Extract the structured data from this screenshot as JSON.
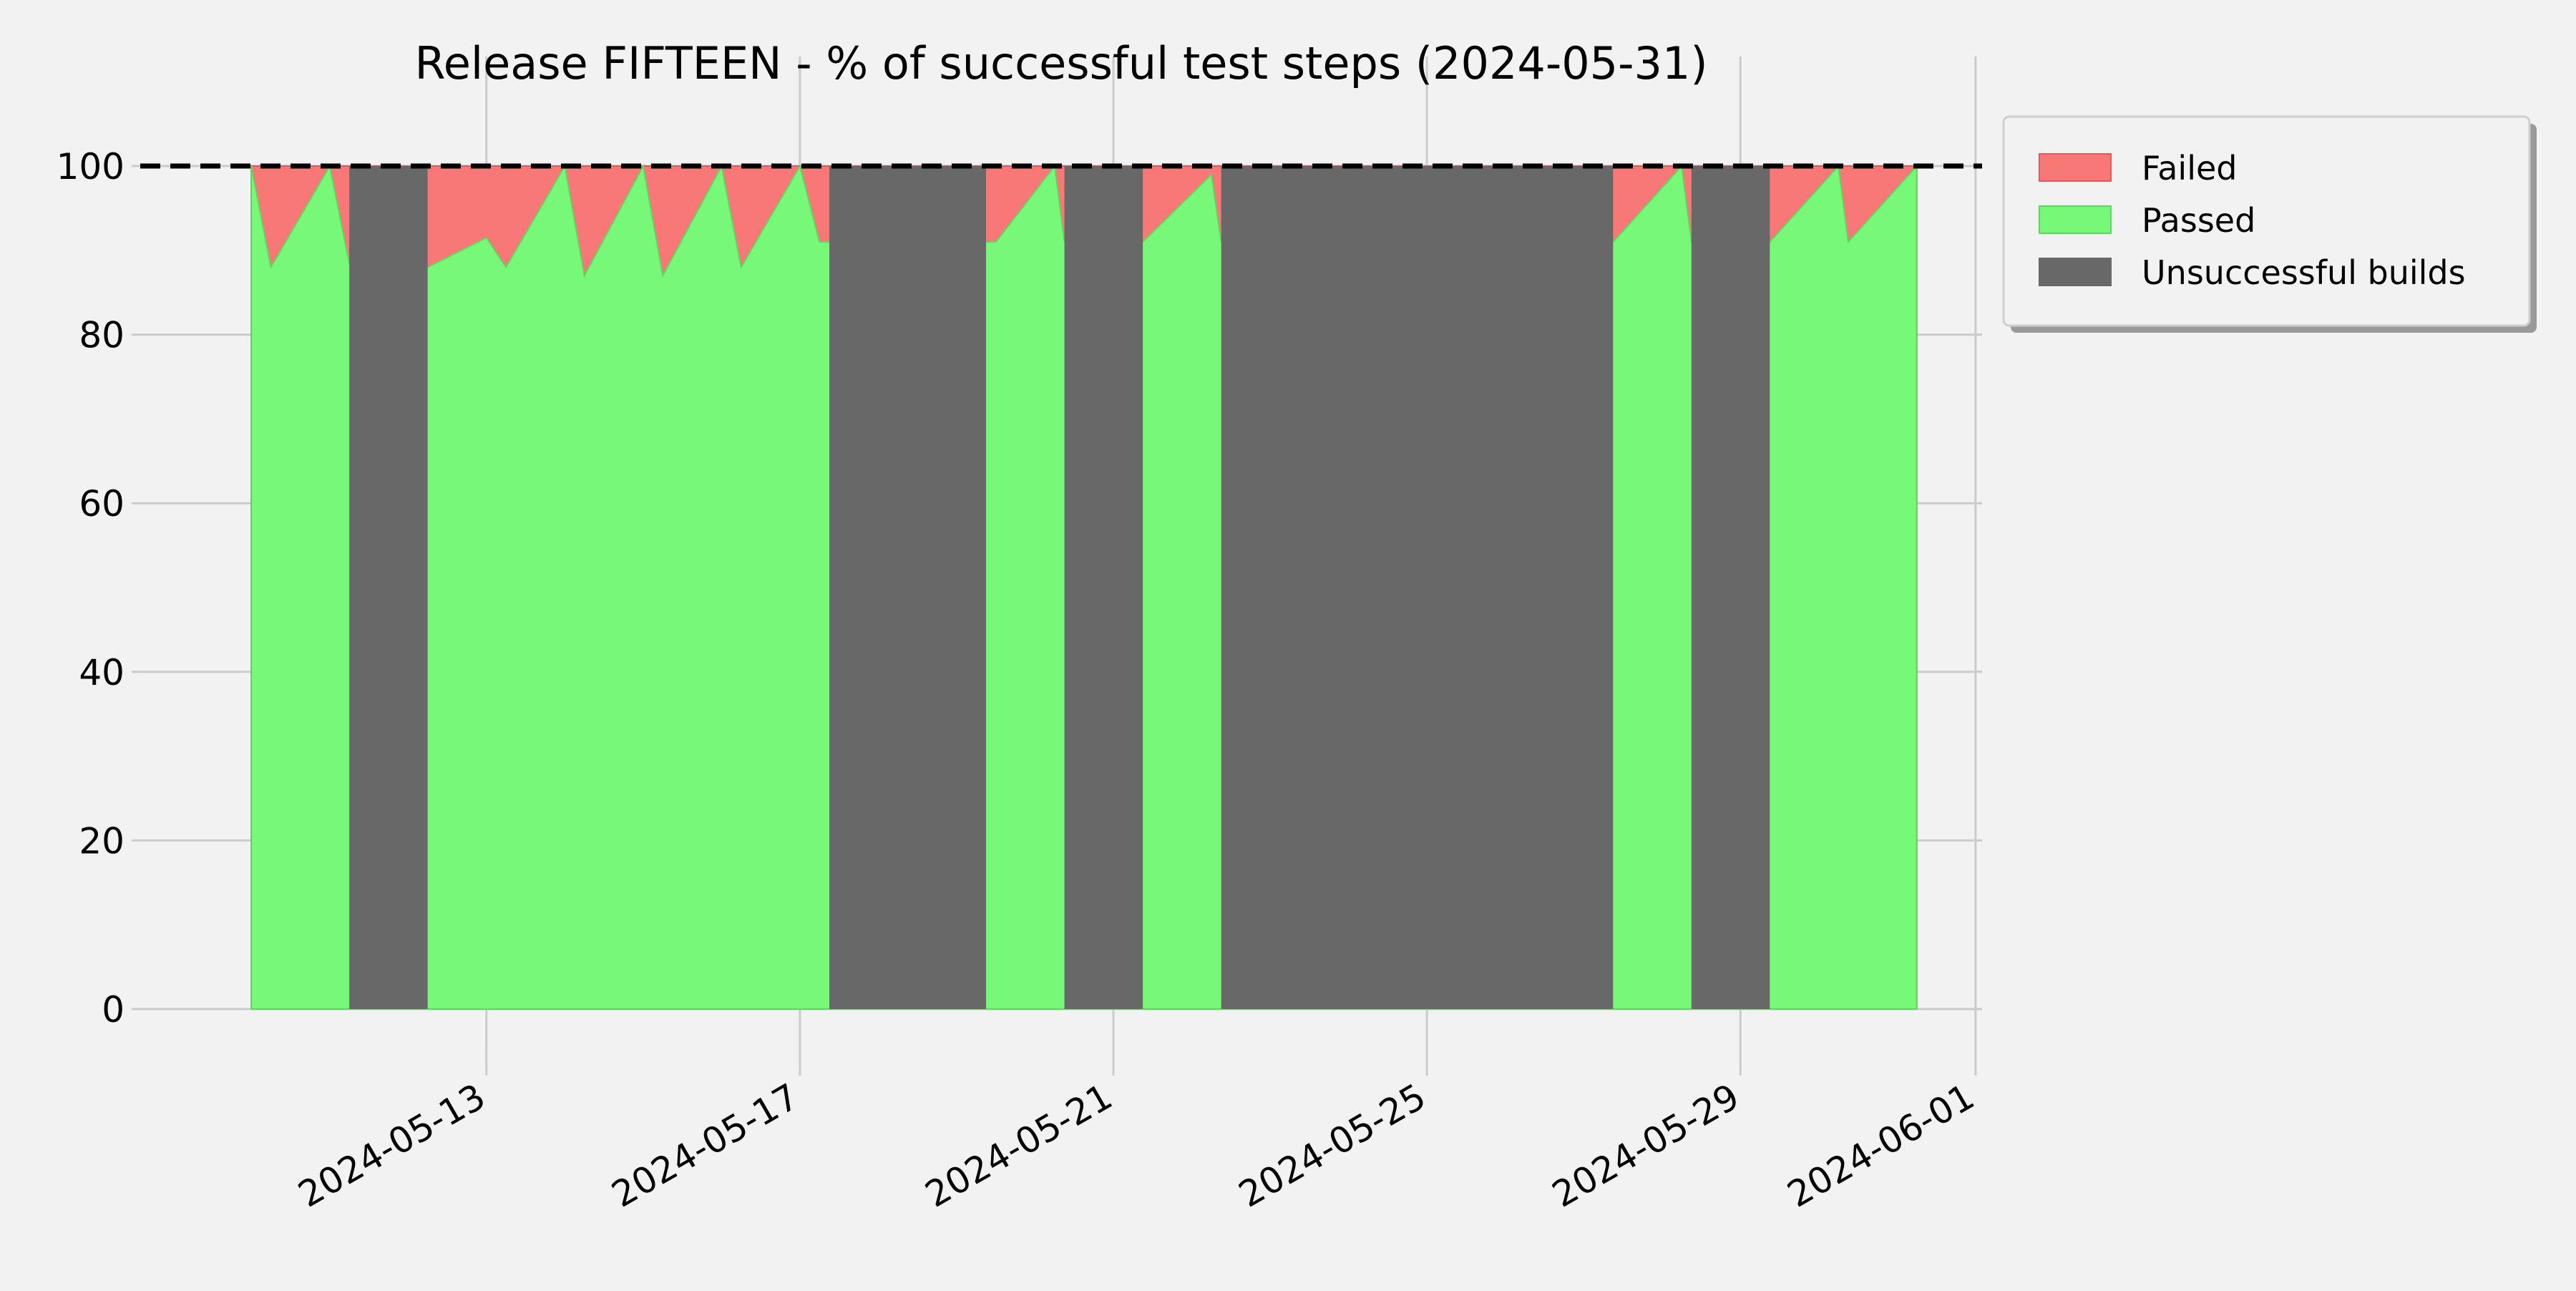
{
  "chart_data": {
    "type": "area",
    "title": "Release FIFTEEN - % of successful test steps (2024-05-31)",
    "xlabel": "",
    "ylabel": "",
    "x_range": [
      "2024-05-08T14:00",
      "2024-06-01T02:00"
    ],
    "ylim": [
      -4.5,
      104.5
    ],
    "y_ticks": [
      0,
      20,
      40,
      60,
      80,
      100
    ],
    "x_ticks": [
      "2024-05-13",
      "2024-05-17",
      "2024-05-21",
      "2024-05-25",
      "2024-05-29",
      "2024-06-01"
    ],
    "reference_line": {
      "y": 100,
      "style": "dashed",
      "color": "#000000"
    },
    "grid": true,
    "legend": {
      "placement": "outside-top-right",
      "entries": [
        "Failed",
        "Passed",
        "Unsuccessful builds"
      ]
    },
    "colors": {
      "failed": "#f87878",
      "passed": "#78f878",
      "unsuccessful": "#686868",
      "background": "#f2f2f2",
      "grid": "#cbcbcb"
    },
    "series": [
      {
        "name": "Passed",
        "points": [
          [
            "2024-05-10T00:00",
            100
          ],
          [
            "2024-05-10T06:00",
            88
          ],
          [
            "2024-05-11T00:00",
            100
          ],
          [
            "2024-05-11T06:00",
            88.5
          ],
          [
            "2024-05-12T06:00",
            88
          ],
          [
            "2024-05-13T00:00",
            91.5
          ],
          [
            "2024-05-13T06:00",
            88
          ],
          [
            "2024-05-14T00:00",
            100
          ],
          [
            "2024-05-14T06:00",
            87
          ],
          [
            "2024-05-15T00:00",
            100
          ],
          [
            "2024-05-15T06:00",
            87
          ],
          [
            "2024-05-16T00:00",
            100
          ],
          [
            "2024-05-16T06:00",
            88
          ],
          [
            "2024-05-17T00:00",
            100
          ],
          [
            "2024-05-17T06:00",
            91
          ],
          [
            "2024-05-17T09:00",
            91
          ],
          [
            "2024-05-19T09:00",
            91
          ],
          [
            "2024-05-19T12:00",
            91
          ],
          [
            "2024-05-20T06:00",
            100
          ],
          [
            "2024-05-20T09:00",
            91
          ],
          [
            "2024-05-21T09:00",
            91
          ],
          [
            "2024-05-22T06:00",
            99
          ],
          [
            "2024-05-22T09:00",
            91
          ],
          [
            "2024-05-27T09:00",
            91
          ],
          [
            "2024-05-28T06:00",
            100
          ],
          [
            "2024-05-28T09:00",
            91
          ],
          [
            "2024-05-29T09:00",
            91
          ],
          [
            "2024-05-30T06:00",
            100
          ],
          [
            "2024-05-30T09:00",
            91
          ],
          [
            "2024-05-31T06:00",
            100
          ]
        ]
      },
      {
        "name": "Failed",
        "from": "2024-05-10T00:00",
        "to": "2024-05-31T06:00",
        "values": 100
      }
    ],
    "unsuccessful_builds": [
      [
        "2024-05-11T06:00",
        "2024-05-12T06:00"
      ],
      [
        "2024-05-17T09:00",
        "2024-05-19T09:00"
      ],
      [
        "2024-05-20T09:00",
        "2024-05-21T09:00"
      ],
      [
        "2024-05-22T09:00",
        "2024-05-27T09:00"
      ],
      [
        "2024-05-28T09:00",
        "2024-05-29T09:00"
      ]
    ]
  }
}
